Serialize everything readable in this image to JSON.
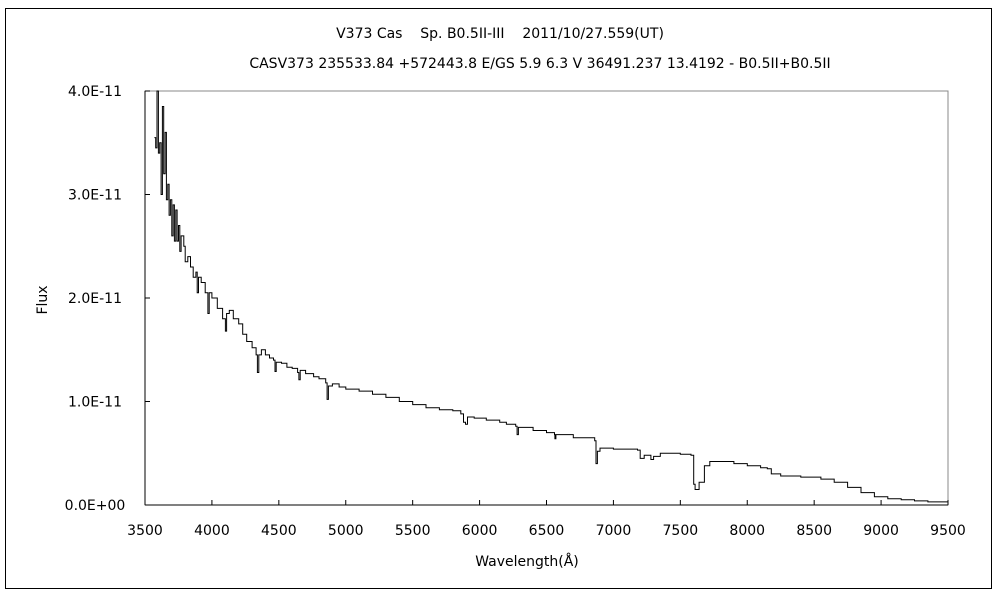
{
  "chart_data": {
    "type": "line",
    "title": "V373 Cas    Sp. B0.5II-III    2011/10/27.559(UT)",
    "subtitle": "CASV373 235533.84 +572443.8 E/GS 5.9 6.3 V 36491.237 13.4192 - B0.5II+B0.5II",
    "xlabel": "Wavelength(Å)",
    "ylabel": "Flux",
    "xlim": [
      3500,
      9500
    ],
    "ylim": [
      0,
      4e-11
    ],
    "xticks": [
      "3500",
      "4000",
      "4500",
      "5000",
      "5500",
      "6000",
      "6500",
      "7000",
      "7500",
      "8000",
      "8500",
      "9000",
      "9500"
    ],
    "yticks": [
      "0.0E+00",
      "1.0E-11",
      "2.0E-11",
      "3.0E-11",
      "4.0E-11"
    ],
    "grid": false,
    "legend": "none",
    "line_color": "#000000",
    "y_unit_scale": 1e-11,
    "series": [
      {
        "points_e11": [
          [
            3570,
            3.55
          ],
          [
            3580,
            3.45
          ],
          [
            3590,
            4.0
          ],
          [
            3600,
            3.4
          ],
          [
            3610,
            3.5
          ],
          [
            3620,
            3.0
          ],
          [
            3630,
            3.85
          ],
          [
            3640,
            3.2
          ],
          [
            3650,
            3.6
          ],
          [
            3660,
            2.95
          ],
          [
            3670,
            3.1
          ],
          [
            3680,
            2.8
          ],
          [
            3690,
            2.95
          ],
          [
            3700,
            2.6
          ],
          [
            3710,
            2.9
          ],
          [
            3720,
            2.55
          ],
          [
            3730,
            2.85
          ],
          [
            3740,
            2.55
          ],
          [
            3750,
            2.7
          ],
          [
            3760,
            2.45
          ],
          [
            3770,
            2.6
          ],
          [
            3790,
            2.5
          ],
          [
            3800,
            2.35
          ],
          [
            3820,
            2.4
          ],
          [
            3840,
            2.3
          ],
          [
            3860,
            2.2
          ],
          [
            3880,
            2.25
          ],
          [
            3890,
            2.05
          ],
          [
            3900,
            2.2
          ],
          [
            3920,
            2.15
          ],
          [
            3950,
            2.05
          ],
          [
            3970,
            1.85
          ],
          [
            3980,
            2.05
          ],
          [
            4000,
            2.0
          ],
          [
            4040,
            1.9
          ],
          [
            4060,
            1.9
          ],
          [
            4080,
            1.8
          ],
          [
            4101,
            1.68
          ],
          [
            4110,
            1.85
          ],
          [
            4130,
            1.88
          ],
          [
            4160,
            1.8
          ],
          [
            4200,
            1.75
          ],
          [
            4230,
            1.65
          ],
          [
            4260,
            1.58
          ],
          [
            4300,
            1.52
          ],
          [
            4330,
            1.45
          ],
          [
            4340,
            1.28
          ],
          [
            4350,
            1.45
          ],
          [
            4370,
            1.5
          ],
          [
            4400,
            1.45
          ],
          [
            4430,
            1.42
          ],
          [
            4460,
            1.4
          ],
          [
            4471,
            1.29
          ],
          [
            4480,
            1.38
          ],
          [
            4520,
            1.37
          ],
          [
            4560,
            1.33
          ],
          [
            4600,
            1.32
          ],
          [
            4640,
            1.28
          ],
          [
            4650,
            1.21
          ],
          [
            4660,
            1.3
          ],
          [
            4700,
            1.27
          ],
          [
            4760,
            1.24
          ],
          [
            4800,
            1.22
          ],
          [
            4850,
            1.18
          ],
          [
            4861,
            1.02
          ],
          [
            4870,
            1.15
          ],
          [
            4900,
            1.17
          ],
          [
            4950,
            1.14
          ],
          [
            5000,
            1.12
          ],
          [
            5100,
            1.1
          ],
          [
            5200,
            1.07
          ],
          [
            5300,
            1.04
          ],
          [
            5400,
            1.0
          ],
          [
            5500,
            0.97
          ],
          [
            5600,
            0.94
          ],
          [
            5700,
            0.92
          ],
          [
            5800,
            0.91
          ],
          [
            5860,
            0.88
          ],
          [
            5880,
            0.8
          ],
          [
            5895,
            0.78
          ],
          [
            5910,
            0.85
          ],
          [
            5960,
            0.84
          ],
          [
            6050,
            0.82
          ],
          [
            6150,
            0.8
          ],
          [
            6200,
            0.78
          ],
          [
            6270,
            0.76
          ],
          [
            6280,
            0.68
          ],
          [
            6290,
            0.75
          ],
          [
            6400,
            0.72
          ],
          [
            6500,
            0.7
          ],
          [
            6560,
            0.68
          ],
          [
            6563,
            0.64
          ],
          [
            6570,
            0.68
          ],
          [
            6700,
            0.65
          ],
          [
            6860,
            0.62
          ],
          [
            6870,
            0.4
          ],
          [
            6880,
            0.52
          ],
          [
            6900,
            0.55
          ],
          [
            7000,
            0.54
          ],
          [
            7100,
            0.54
          ],
          [
            7180,
            0.53
          ],
          [
            7200,
            0.45
          ],
          [
            7230,
            0.48
          ],
          [
            7280,
            0.44
          ],
          [
            7300,
            0.47
          ],
          [
            7350,
            0.5
          ],
          [
            7400,
            0.5
          ],
          [
            7500,
            0.49
          ],
          [
            7580,
            0.48
          ],
          [
            7600,
            0.2
          ],
          [
            7610,
            0.15
          ],
          [
            7640,
            0.22
          ],
          [
            7680,
            0.38
          ],
          [
            7720,
            0.42
          ],
          [
            7800,
            0.42
          ],
          [
            7900,
            0.4
          ],
          [
            8000,
            0.38
          ],
          [
            8100,
            0.36
          ],
          [
            8150,
            0.35
          ],
          [
            8180,
            0.3
          ],
          [
            8250,
            0.28
          ],
          [
            8400,
            0.27
          ],
          [
            8550,
            0.25
          ],
          [
            8650,
            0.22
          ],
          [
            8750,
            0.17
          ],
          [
            8850,
            0.12
          ],
          [
            8950,
            0.08
          ],
          [
            9050,
            0.06
          ],
          [
            9150,
            0.05
          ],
          [
            9250,
            0.04
          ],
          [
            9350,
            0.03
          ],
          [
            9450,
            0.03
          ],
          [
            9500,
            0.02
          ]
        ]
      }
    ]
  }
}
